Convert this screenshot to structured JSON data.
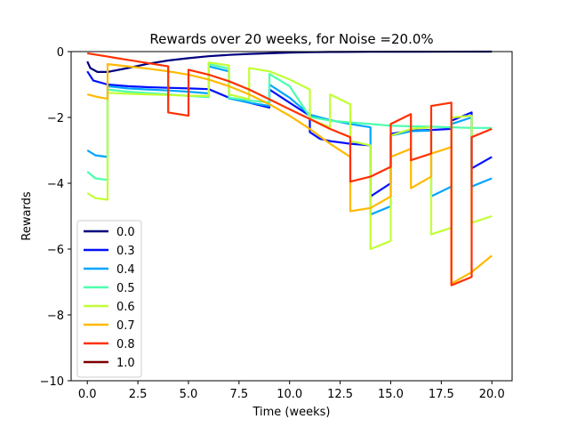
{
  "chart_data": {
    "type": "line",
    "title": "Rewards over 20 weeks, for Noise =20.0%",
    "xlabel": "Time (weeks)",
    "ylabel": "Rewards",
    "xlim": [
      -0.8,
      21.0
    ],
    "ylim": [
      -10,
      0
    ],
    "xticks": [
      0.0,
      2.5,
      5.0,
      7.5,
      10.0,
      12.5,
      15.0,
      17.5,
      20.0
    ],
    "xtick_labels": [
      "0.0",
      "2.5",
      "5.0",
      "7.5",
      "10.0",
      "12.5",
      "15.0",
      "17.5",
      "20.0"
    ],
    "yticks": [
      0,
      -2,
      -4,
      -6,
      -8,
      -10
    ],
    "ytick_labels": [
      "0",
      "−2",
      "−4",
      "−6",
      "−8",
      "−10"
    ],
    "grid": false,
    "legend_position": "lower-left",
    "series": [
      {
        "name": "0.0",
        "color": "#00007f",
        "points": [
          [
            0,
            -0.3
          ],
          [
            0.15,
            -0.5
          ],
          [
            0.5,
            -0.62
          ],
          [
            1,
            -0.62
          ],
          [
            2,
            -0.5
          ],
          [
            3,
            -0.37
          ],
          [
            4,
            -0.27
          ],
          [
            5,
            -0.2
          ],
          [
            6,
            -0.14
          ],
          [
            7,
            -0.1
          ],
          [
            8,
            -0.07
          ],
          [
            9,
            -0.05
          ],
          [
            10,
            -0.03
          ],
          [
            11,
            -0.02
          ],
          [
            12,
            -0.01
          ],
          [
            14,
            -0.005
          ],
          [
            16,
            -0.002
          ],
          [
            20,
            0
          ]
        ]
      },
      {
        "name": "0.3",
        "color": "#0010ff",
        "points": [
          [
            0,
            -0.6
          ],
          [
            0.3,
            -0.88
          ],
          [
            1,
            -1.0
          ],
          [
            2,
            -1.05
          ],
          [
            3,
            -1.08
          ],
          [
            4,
            -1.1
          ],
          [
            5,
            -1.12
          ],
          [
            6,
            -1.14
          ],
          [
            7,
            -1.4
          ],
          [
            8,
            -1.55
          ],
          [
            9,
            -1.7
          ],
          [
            9,
            -1.15
          ],
          [
            10,
            -1.55
          ],
          [
            11,
            -1.95
          ],
          [
            11,
            -2.45
          ],
          [
            11.5,
            -2.65
          ],
          [
            12,
            -2.72
          ],
          [
            13,
            -2.8
          ],
          [
            14,
            -2.85
          ],
          [
            14,
            -4.4
          ],
          [
            15,
            -4.0
          ],
          [
            15,
            -2.5
          ],
          [
            16,
            -2.4
          ],
          [
            17,
            -2.38
          ],
          [
            18,
            -2.35
          ],
          [
            18,
            -2.1
          ],
          [
            19,
            -1.85
          ],
          [
            19,
            -3.55
          ],
          [
            20,
            -3.2
          ]
        ]
      },
      {
        "name": "0.4",
        "color": "#00a4ff",
        "points": [
          [
            0,
            -3.0
          ],
          [
            0.4,
            -3.15
          ],
          [
            1,
            -3.2
          ],
          [
            1,
            -1.05
          ],
          [
            2,
            -1.12
          ],
          [
            3,
            -1.15
          ],
          [
            4,
            -1.18
          ],
          [
            5,
            -1.22
          ],
          [
            6,
            -1.27
          ],
          [
            6,
            -0.45
          ],
          [
            7,
            -0.6
          ],
          [
            7,
            -1.42
          ],
          [
            8,
            -1.55
          ],
          [
            9,
            -1.65
          ],
          [
            9,
            -1.0
          ],
          [
            10,
            -1.4
          ],
          [
            11,
            -1.92
          ],
          [
            12,
            -2.08
          ],
          [
            13,
            -2.2
          ],
          [
            14,
            -2.3
          ],
          [
            14,
            -4.95
          ],
          [
            15,
            -4.7
          ],
          [
            15,
            -2.55
          ],
          [
            16,
            -2.42
          ],
          [
            17,
            -2.4
          ],
          [
            17,
            -4.4
          ],
          [
            18,
            -4.1
          ],
          [
            18,
            -2.2
          ],
          [
            19,
            -2.0
          ],
          [
            19,
            -4.1
          ],
          [
            20,
            -3.85
          ]
        ]
      },
      {
        "name": "0.5",
        "color": "#4bffad",
        "points": [
          [
            0,
            -3.65
          ],
          [
            0.4,
            -3.85
          ],
          [
            1,
            -3.9
          ],
          [
            1,
            -1.15
          ],
          [
            2,
            -1.22
          ],
          [
            3,
            -1.26
          ],
          [
            4,
            -1.3
          ],
          [
            5,
            -1.35
          ],
          [
            6,
            -1.38
          ],
          [
            6,
            -0.38
          ],
          [
            7,
            -0.52
          ],
          [
            7,
            -1.4
          ],
          [
            8,
            -1.48
          ],
          [
            9,
            -1.55
          ],
          [
            9,
            -0.68
          ],
          [
            10,
            -1.05
          ],
          [
            11,
            -1.98
          ],
          [
            12,
            -2.1
          ],
          [
            13,
            -2.15
          ],
          [
            14,
            -2.2
          ],
          [
            15,
            -2.25
          ],
          [
            16,
            -2.27
          ],
          [
            17,
            -2.28
          ],
          [
            18,
            -2.3
          ],
          [
            19,
            -2.32
          ],
          [
            20,
            -2.32
          ]
        ]
      },
      {
        "name": "0.6",
        "color": "#c1ff36",
        "points": [
          [
            0,
            -4.3
          ],
          [
            0.4,
            -4.45
          ],
          [
            1,
            -4.5
          ],
          [
            1,
            -1.25
          ],
          [
            2,
            -1.28
          ],
          [
            3,
            -1.3
          ],
          [
            4,
            -1.32
          ],
          [
            5,
            -1.34
          ],
          [
            6,
            -1.35
          ],
          [
            6,
            -0.33
          ],
          [
            7,
            -0.42
          ],
          [
            7,
            -1.3
          ],
          [
            8,
            -1.45
          ],
          [
            8,
            -0.5
          ],
          [
            9,
            -0.6
          ],
          [
            10,
            -0.85
          ],
          [
            11,
            -1.15
          ],
          [
            11,
            -2.05
          ],
          [
            12,
            -2.3
          ],
          [
            12,
            -1.3
          ],
          [
            13,
            -1.6
          ],
          [
            13,
            -2.72
          ],
          [
            14,
            -2.85
          ],
          [
            14,
            -6.0
          ],
          [
            15,
            -5.75
          ],
          [
            15,
            -2.55
          ],
          [
            16,
            -2.35
          ],
          [
            17,
            -2.3
          ],
          [
            17,
            -5.55
          ],
          [
            18,
            -5.35
          ],
          [
            18,
            -2.0
          ],
          [
            19,
            -1.95
          ],
          [
            19,
            -5.2
          ],
          [
            20,
            -5.0
          ]
        ]
      },
      {
        "name": "0.7",
        "color": "#ffb900",
        "points": [
          [
            0,
            -1.3
          ],
          [
            0.5,
            -1.38
          ],
          [
            1,
            -1.43
          ],
          [
            1,
            -0.38
          ],
          [
            2,
            -0.45
          ],
          [
            3,
            -0.52
          ],
          [
            4,
            -0.6
          ],
          [
            5,
            -0.7
          ],
          [
            6,
            -0.85
          ],
          [
            7,
            -1.05
          ],
          [
            8,
            -1.3
          ],
          [
            9,
            -1.6
          ],
          [
            10,
            -1.95
          ],
          [
            11,
            -2.35
          ],
          [
            12,
            -2.8
          ],
          [
            13,
            -3.2
          ],
          [
            13,
            -4.85
          ],
          [
            14,
            -4.75
          ],
          [
            15,
            -4.4
          ],
          [
            15,
            -3.2
          ],
          [
            16,
            -2.95
          ],
          [
            16,
            -4.15
          ],
          [
            17,
            -3.8
          ],
          [
            17,
            -3.1
          ],
          [
            18,
            -2.9
          ],
          [
            18,
            -7.05
          ],
          [
            19,
            -6.7
          ],
          [
            20,
            -6.2
          ]
        ]
      },
      {
        "name": "0.8",
        "color": "#ff3000",
        "points": [
          [
            0,
            -0.05
          ],
          [
            1,
            -0.15
          ],
          [
            2,
            -0.25
          ],
          [
            3,
            -0.35
          ],
          [
            4,
            -0.45
          ],
          [
            4,
            -1.85
          ],
          [
            5,
            -1.95
          ],
          [
            5,
            -0.55
          ],
          [
            6,
            -0.7
          ],
          [
            7,
            -0.9
          ],
          [
            8,
            -1.15
          ],
          [
            9,
            -1.45
          ],
          [
            10,
            -1.75
          ],
          [
            11,
            -2.05
          ],
          [
            12,
            -2.35
          ],
          [
            13,
            -2.6
          ],
          [
            13,
            -3.95
          ],
          [
            14,
            -3.8
          ],
          [
            15,
            -3.5
          ],
          [
            15,
            -2.2
          ],
          [
            16,
            -1.9
          ],
          [
            16,
            -3.3
          ],
          [
            17,
            -3.1
          ],
          [
            17,
            -1.65
          ],
          [
            18,
            -1.55
          ],
          [
            18,
            -7.1
          ],
          [
            19,
            -6.85
          ],
          [
            19,
            -2.6
          ],
          [
            20,
            -2.35
          ]
        ]
      },
      {
        "name": "1.0",
        "color": "#7f0000",
        "points": []
      }
    ]
  }
}
